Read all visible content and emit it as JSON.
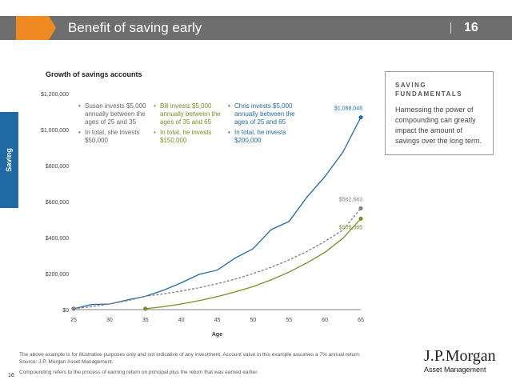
{
  "header": {
    "title": "Benefit of saving early",
    "page_number": "16",
    "accent_color": "#ef8a22",
    "bar_color": "#6e6e6e"
  },
  "side_tab": {
    "label": "Saving",
    "color": "#1f6aa5"
  },
  "chart_title": "Growth of savings accounts",
  "legend": {
    "susan": {
      "line1": "Susan invests $5,000 annually between the ages of 25 and 35",
      "line2": "In total, she invests $50,000"
    },
    "bill": {
      "line1": "Bill invests $5,000 annually between the ages of 35 and 65",
      "line2": "In total, he invests $150,000"
    },
    "chris": {
      "line1": "Chris invests $5,000 annually between the ages of 25 and 65",
      "line2": "In total, he invests $200,000"
    }
  },
  "fundamentals": {
    "heading_line1": "SAVING",
    "heading_line2": "FUNDAMENTALS",
    "body": "Harnessing the power of compounding can greatly impact the amount of savings over the long term."
  },
  "footnotes": {
    "line1": "The above example is for illustrative purposes only and not indicative of any investment. Account value in this example assumes a 7% annual return.",
    "line2": "Source: J.P. Morgan Asset Management.",
    "line3": "Compounding refers to the process of earning return on principal plus the return that was earned earlier."
  },
  "page_footer_number": "16",
  "logo": {
    "name": "J.P.Morgan",
    "sub": "Asset Management"
  },
  "chart_data": {
    "type": "line",
    "xlabel": "Age",
    "ylabel": "",
    "xlim": [
      25,
      65
    ],
    "ylim": [
      0,
      1200000
    ],
    "x_ticks": [
      25,
      30,
      35,
      40,
      45,
      50,
      55,
      60,
      65
    ],
    "y_ticks": [
      0,
      200000,
      400000,
      600000,
      800000,
      1000000,
      1200000
    ],
    "y_tick_labels": [
      "$0",
      "$200,000",
      "$400,000",
      "$600,000",
      "$800,000",
      "$1,000,000",
      "$1,200,000"
    ],
    "series": [
      {
        "color": "#1f6aa5",
        "style": "solid",
        "x": [
          25,
          27.5,
          30,
          32.5,
          35,
          37.5,
          40,
          42.5,
          45,
          47.5,
          50,
          52.5,
          55,
          57.5,
          60,
          62.5,
          65
        ],
        "values": [
          5000,
          28000,
          31000,
          54000,
          74000,
          107000,
          149000,
          196000,
          219000,
          286000,
          338000,
          444000,
          490000,
          625000,
          739000,
          874000,
          1068048
        ],
        "end_label": "$1,068,048"
      },
      {
        "color": "#7f7f7f",
        "style": "dashed",
        "x": [
          25,
          27.5,
          30,
          32.5,
          35,
          37.5,
          40,
          42.5,
          45,
          47.5,
          50,
          52.5,
          55,
          57.5,
          60,
          62.5,
          65
        ],
        "values": [
          5000,
          16000,
          31000,
          50000,
          74000,
          87000,
          103000,
          122000,
          144000,
          169000,
          200000,
          235000,
          276000,
          323000,
          379000,
          442000,
          562683
        ],
        "end_label": "$562,683"
      },
      {
        "color": "#7a8f24",
        "style": "solid",
        "x": [
          35,
          37.5,
          40,
          42.5,
          45,
          47.5,
          50,
          52.5,
          55,
          57.5,
          60,
          62.5,
          65
        ],
        "values": [
          5000,
          16000,
          31000,
          50000,
          72000,
          98000,
          128000,
          165000,
          208000,
          260000,
          318000,
          396000,
          505365
        ],
        "end_label": "$505,365"
      }
    ],
    "grid": false
  }
}
